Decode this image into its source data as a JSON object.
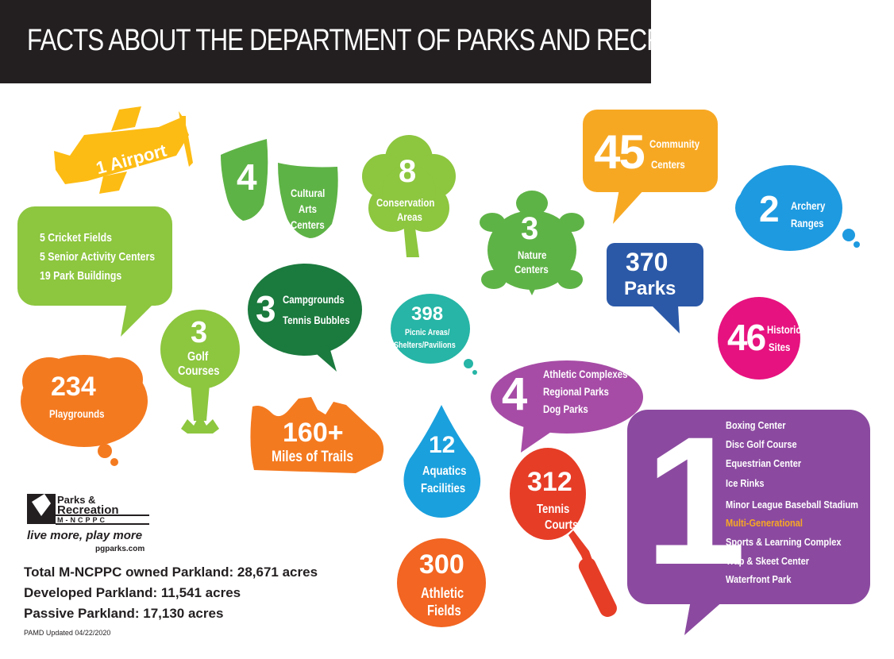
{
  "title": "FACTS ABOUT THE DEPARTMENT OF PARKS AND RECREATION",
  "airport": {
    "text": "1 Airport"
  },
  "cultural": {
    "number": "4",
    "line1": "Cultural",
    "line2": "Arts",
    "line3": "Centers"
  },
  "conservation": {
    "number": "8",
    "line1": "Conservation",
    "line2": "Areas"
  },
  "nature": {
    "number": "3",
    "line1": "Nature",
    "line2": "Centers"
  },
  "community": {
    "number": "45",
    "line1": "Community",
    "line2": "Centers"
  },
  "archery": {
    "number": "2",
    "line1": "Archery",
    "line2": "Ranges"
  },
  "parks": {
    "number": "370",
    "label": "Parks"
  },
  "historic": {
    "number": "46",
    "line1": "Historic",
    "line2": "Sites"
  },
  "cricket": {
    "line1": "5 Cricket Fields",
    "line2": "5 Senior Activity Centers",
    "line3": "19 Park Buildings"
  },
  "campgrounds": {
    "number": "3",
    "line1": "Campgrounds",
    "line2": "Tennis Bubbles"
  },
  "picnic": {
    "number": "398",
    "line1": "Picnic Areas/",
    "line2": "Shelters/Pavilions"
  },
  "golf": {
    "number": "3",
    "line1": "Golf",
    "line2": "Courses"
  },
  "playgrounds": {
    "number": "234",
    "label": "Playgrounds"
  },
  "athletic_complexes": {
    "number": "4",
    "line1": "Athletic Complexes",
    "line2": "Regional Parks",
    "line3": "Dog Parks"
  },
  "trails": {
    "number": "160+",
    "label": "Miles of Trails"
  },
  "aquatics": {
    "number": "12",
    "line1": "Aquatics",
    "line2": "Facilities"
  },
  "tennis": {
    "number": "312",
    "line1": "Tennis",
    "line2": "Courts"
  },
  "one_facilities": {
    "number": "1",
    "items": [
      "Boxing Center",
      "Disc Golf Course",
      "Equestrian Center",
      "Ice Rinks",
      "Minor League Baseball Stadium",
      "Multi-Generational",
      "Sports & Learning Complex",
      "Trap & Skeet Center",
      "Waterfront Park"
    ],
    "highlight_color": "#f7a823"
  },
  "athletic_fields": {
    "number": "300",
    "line1": "Athletic",
    "line2": "Fields"
  },
  "logo": {
    "line1": "Parks &",
    "line2": "Recreation",
    "line3": "M-NCPPC",
    "tagline": "live more, play more",
    "url": "pgparks.com"
  },
  "stats": {
    "total": "Total M-NCPPC owned Parkland: 28,671 acres",
    "developed": "Developed Parkland: 11,541 acres",
    "passive": "Passive Parkland: 17,130 acres",
    "updated": "PAMD Updated 04/22/2020"
  },
  "colors": {
    "yellow": "#fdbc14",
    "green": "#5eb346",
    "lime": "#8dc63f",
    "orange": "#f7a823",
    "blue": "#1e9ae0",
    "navy": "#2b59a8",
    "magenta": "#e6127f",
    "dark_green": "#1b7a3e",
    "teal": "#26b5a6",
    "bright_orange": "#f47a20",
    "purple_light": "#a64ca6",
    "aqua": "#1aa0dd",
    "red": "#e63d27",
    "purple": "#8b4aa0",
    "orange_red": "#f26522"
  }
}
